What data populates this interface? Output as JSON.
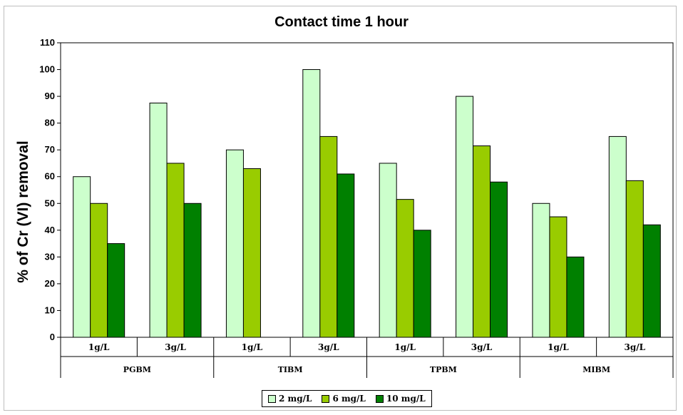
{
  "chart_data": {
    "type": "bar",
    "title": "Contact time 1 hour",
    "ylabel": "% of Cr (VI) removal",
    "xlabel": "",
    "ylim": [
      0,
      110
    ],
    "yticks": [
      0,
      10,
      20,
      30,
      40,
      50,
      60,
      70,
      80,
      90,
      100,
      110
    ],
    "grid": false,
    "legend_position": "bottom",
    "groups": [
      "PGBM",
      "TIBM",
      "TPBM",
      "MIBM"
    ],
    "categories": [
      "1g/L",
      "3g/L",
      "1g/L",
      "3g/L",
      "1g/L",
      "3g/L",
      "1g/L",
      "3g/L"
    ],
    "series": [
      {
        "name": "2 mg/L",
        "color": "#ccffcc",
        "values": [
          60,
          87.5,
          70,
          100,
          65,
          90,
          50,
          75
        ]
      },
      {
        "name": "6 mg/L",
        "color": "#99cc00",
        "values": [
          50,
          65,
          63,
          75,
          51.5,
          71.5,
          45,
          58.5
        ]
      },
      {
        "name": "10 mg/L",
        "color": "#008000",
        "values": [
          35,
          50,
          null,
          61,
          40,
          58,
          30,
          42
        ]
      }
    ]
  }
}
